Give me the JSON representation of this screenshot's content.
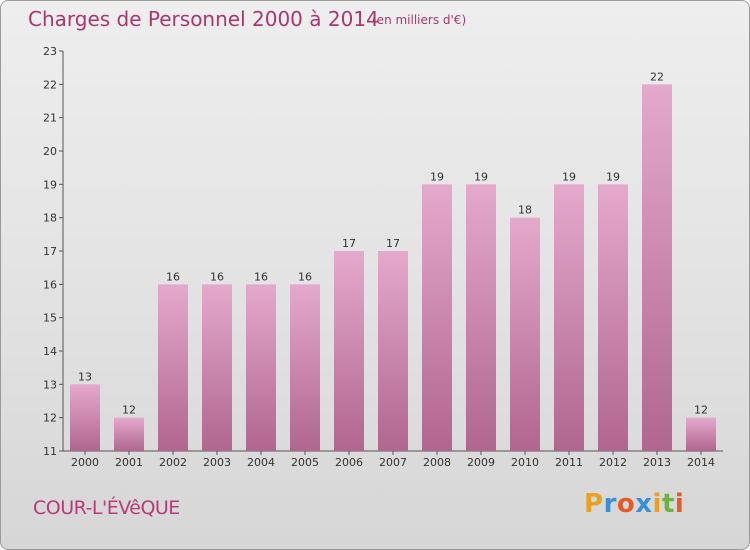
{
  "header": {
    "title": "Charges de Personnel 2000 à 2014",
    "subtitle": "(en milliers d'€)"
  },
  "footer": {
    "commune": "COUR-L'ÉVêQUE",
    "logo_letters": [
      "P",
      "r",
      "o",
      "x",
      "i",
      "t",
      "i"
    ],
    "logo_colors": [
      "#e8a21f",
      "#3a8fd6",
      "#e35c26",
      "#3a8fd6",
      "#e8a21f",
      "#6cb33f",
      "#e35c26"
    ]
  },
  "colors": {
    "bar_top": "#e4a9cc",
    "bar_bottom": "#b0668f",
    "text": "#333333",
    "accent": "#a8386f"
  },
  "chart_data": {
    "type": "bar",
    "categories": [
      "2000",
      "2001",
      "2002",
      "2003",
      "2004",
      "2005",
      "2006",
      "2007",
      "2008",
      "2009",
      "2010",
      "2011",
      "2012",
      "2013",
      "2014"
    ],
    "values": [
      13,
      12,
      16,
      16,
      16,
      16,
      17,
      17,
      19,
      19,
      18,
      19,
      19,
      22,
      12
    ],
    "ylim": [
      11,
      23
    ],
    "yticks": [
      11,
      12,
      13,
      14,
      15,
      16,
      17,
      18,
      19,
      20,
      21,
      22,
      23
    ],
    "grid": false
  }
}
